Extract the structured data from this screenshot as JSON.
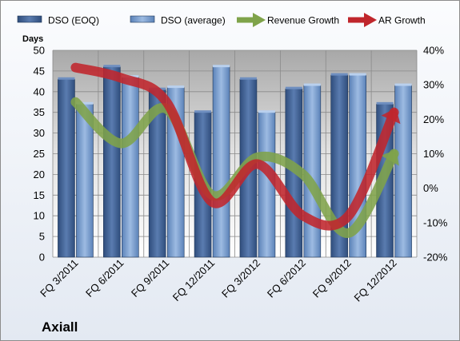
{
  "chart_data": {
    "type": "bar",
    "company": "Axiall",
    "categories": [
      "FQ 3/2011",
      "FQ 6/2011",
      "FQ 9/2011",
      "FQ 12/2011",
      "FQ 3/2012",
      "FQ 6/2012",
      "FQ 9/2012",
      "FQ 12/2012"
    ],
    "y_left_label": "Days",
    "y_left_range": [
      0,
      50
    ],
    "y_left_ticks": [
      "0",
      "5",
      "10",
      "15",
      "20",
      "25",
      "30",
      "35",
      "40",
      "45",
      "50"
    ],
    "y_right_range": [
      -20,
      40
    ],
    "y_right_ticks": [
      "-20%",
      "-10%",
      "0%",
      "10%",
      "20%",
      "30%",
      "40%"
    ],
    "grid": true,
    "legend_position": "top",
    "series": [
      {
        "name": "DSO (EOQ)",
        "kind": "bar",
        "axis": "left",
        "color": "#4f6fa0",
        "values": [
          43,
          46,
          40.5,
          35,
          43,
          40.7,
          44,
          37
        ]
      },
      {
        "name": "DSO (average)",
        "kind": "bar",
        "axis": "left",
        "color": "#7fa3d0",
        "values": [
          37,
          43.5,
          41,
          46,
          35,
          41.5,
          44,
          41.5
        ]
      },
      {
        "name": "Revenue Growth",
        "kind": "line",
        "axis": "right",
        "color": "#7fa34a",
        "values": [
          25,
          13,
          23,
          -2,
          9,
          4,
          -13,
          10
        ]
      },
      {
        "name": "AR Growth",
        "kind": "line",
        "axis": "right",
        "color": "#c0262c",
        "values": [
          35,
          32,
          25,
          -4,
          7,
          -8,
          -8,
          22
        ]
      }
    ]
  }
}
